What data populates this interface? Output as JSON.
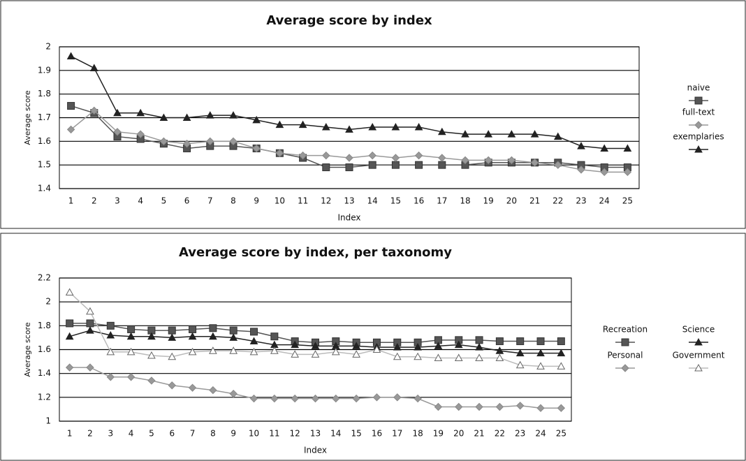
{
  "chart_data": [
    {
      "type": "line",
      "title": "Average score by index",
      "x_label": "Index",
      "y_label": "Average score",
      "categories": [
        1,
        2,
        3,
        4,
        5,
        6,
        7,
        8,
        9,
        10,
        11,
        12,
        13,
        14,
        15,
        16,
        17,
        18,
        19,
        20,
        21,
        22,
        23,
        24,
        25
      ],
      "ylim": [
        1.4,
        2
      ],
      "yticks": [
        1.4,
        1.5,
        1.6,
        1.7,
        1.8,
        1.9,
        2
      ],
      "grid": true,
      "legend": "right",
      "series": [
        {
          "name": "naive",
          "color": "#555555",
          "marker": "square",
          "values": [
            1.75,
            1.72,
            1.62,
            1.61,
            1.59,
            1.57,
            1.58,
            1.58,
            1.57,
            1.55,
            1.53,
            1.49,
            1.49,
            1.5,
            1.5,
            1.5,
            1.5,
            1.5,
            1.51,
            1.51,
            1.51,
            1.51,
            1.5,
            1.49,
            1.49
          ]
        },
        {
          "name": "full-text",
          "color": "#999999",
          "marker": "diamond",
          "values": [
            1.65,
            1.73,
            1.64,
            1.63,
            1.6,
            1.59,
            1.6,
            1.6,
            1.57,
            1.55,
            1.54,
            1.54,
            1.53,
            1.54,
            1.53,
            1.54,
            1.53,
            1.52,
            1.52,
            1.52,
            1.51,
            1.5,
            1.48,
            1.47,
            1.47
          ]
        },
        {
          "name": "exemplaries",
          "color": "#222222",
          "marker": "triangle",
          "values": [
            1.96,
            1.91,
            1.72,
            1.72,
            1.7,
            1.7,
            1.71,
            1.71,
            1.69,
            1.67,
            1.67,
            1.66,
            1.65,
            1.66,
            1.66,
            1.66,
            1.64,
            1.63,
            1.63,
            1.63,
            1.63,
            1.62,
            1.58,
            1.57,
            1.57
          ]
        }
      ]
    },
    {
      "type": "line",
      "title": "Average score by index, per taxonomy",
      "x_label": "Index",
      "y_label": "Average score",
      "categories": [
        1,
        2,
        3,
        4,
        5,
        6,
        7,
        8,
        9,
        10,
        11,
        12,
        13,
        14,
        15,
        16,
        17,
        18,
        19,
        20,
        21,
        22,
        23,
        24,
        25
      ],
      "ylim": [
        1,
        2.2
      ],
      "yticks": [
        1,
        1.2,
        1.4,
        1.6,
        1.8,
        2,
        2.2
      ],
      "grid": true,
      "legend": "right",
      "series": [
        {
          "name": "Recreation",
          "color": "#555555",
          "marker": "square",
          "values": [
            1.82,
            1.82,
            1.8,
            1.77,
            1.76,
            1.76,
            1.77,
            1.78,
            1.76,
            1.75,
            1.71,
            1.67,
            1.66,
            1.67,
            1.66,
            1.66,
            1.66,
            1.66,
            1.68,
            1.68,
            1.68,
            1.67,
            1.67,
            1.67,
            1.67
          ]
        },
        {
          "name": "Personal",
          "color": "#999999",
          "marker": "diamond",
          "values": [
            1.45,
            1.45,
            1.37,
            1.37,
            1.34,
            1.3,
            1.28,
            1.26,
            1.23,
            1.19,
            1.19,
            1.19,
            1.19,
            1.19,
            1.19,
            1.2,
            1.2,
            1.19,
            1.12,
            1.12,
            1.12,
            1.12,
            1.13,
            1.11,
            1.11
          ]
        },
        {
          "name": "Science",
          "color": "#222222",
          "marker": "triangle",
          "values": [
            1.71,
            1.76,
            1.72,
            1.71,
            1.71,
            1.7,
            1.71,
            1.71,
            1.7,
            1.67,
            1.64,
            1.64,
            1.63,
            1.63,
            1.63,
            1.62,
            1.62,
            1.62,
            1.63,
            1.64,
            1.62,
            1.59,
            1.57,
            1.57,
            1.57
          ]
        },
        {
          "name": "Government",
          "color": "#bbbbbb",
          "marker": "open-triangle",
          "values": [
            2.08,
            1.92,
            1.58,
            1.58,
            1.55,
            1.54,
            1.58,
            1.59,
            1.59,
            1.58,
            1.59,
            1.56,
            1.56,
            1.58,
            1.56,
            1.6,
            1.54,
            1.54,
            1.53,
            1.53,
            1.53,
            1.53,
            1.47,
            1.46,
            1.46
          ]
        }
      ]
    }
  ]
}
